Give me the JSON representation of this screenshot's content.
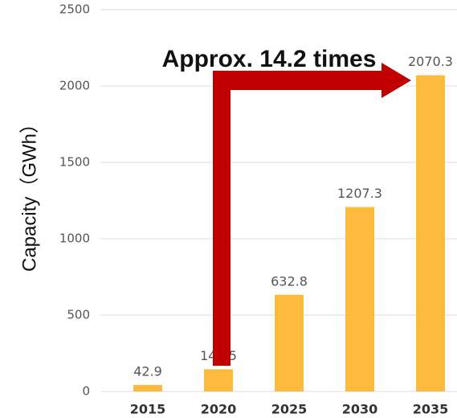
{
  "chart_data": {
    "type": "bar",
    "annotation": "Approx. 14.2 times",
    "y_label": "Capacity（GWh）",
    "categories": [
      "2015",
      "2020",
      "2025",
      "2030",
      "2035"
    ],
    "values": [
      42.9,
      145.5,
      632.8,
      1207.3,
      2070.3
    ],
    "color": "#fdbb3e",
    "ylim": [
      0,
      2500
    ],
    "yticks": [
      0,
      500,
      1000,
      1500,
      2000,
      2500
    ],
    "grid": true
  }
}
